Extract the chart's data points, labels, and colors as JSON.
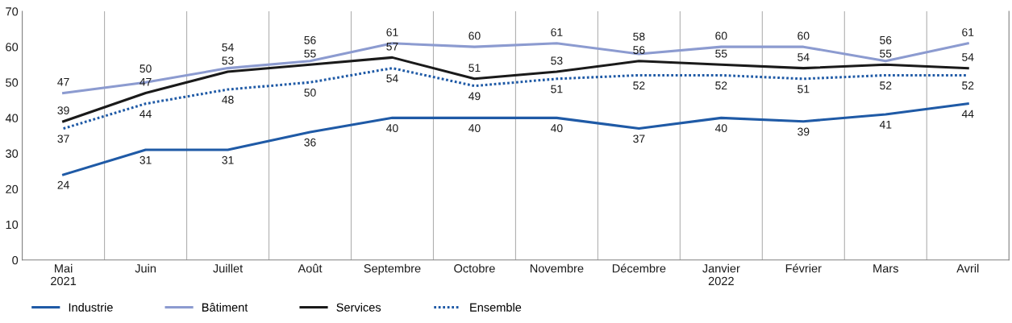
{
  "chart_data": {
    "type": "line",
    "categories": [
      "Mai\n2021",
      "Juin",
      "Juillet",
      "Août",
      "Septembre",
      "Octobre",
      "Novembre",
      "Décembre",
      "Janvier\n2022",
      "Février",
      "Mars",
      "Avril"
    ],
    "series": [
      {
        "name": "Industrie",
        "color": "#1f5aa6",
        "line_style": "solid",
        "values": [
          24,
          31,
          31,
          36,
          40,
          40,
          40,
          37,
          40,
          39,
          41,
          44
        ]
      },
      {
        "name": "Bâtiment",
        "color": "#8c9bd0",
        "line_style": "solid",
        "values": [
          47,
          50,
          54,
          56,
          61,
          60,
          61,
          58,
          60,
          60,
          56,
          61
        ]
      },
      {
        "name": "Services",
        "color": "#1a1a1a",
        "line_style": "solid",
        "values": [
          39,
          47,
          53,
          55,
          57,
          51,
          53,
          56,
          55,
          54,
          55,
          54
        ]
      },
      {
        "name": "Ensemble",
        "color": "#1f5aa6",
        "line_style": "dotted",
        "values": [
          37,
          44,
          48,
          50,
          54,
          49,
          51,
          52,
          52,
          51,
          52,
          52
        ]
      }
    ],
    "ylim": [
      0,
      70
    ],
    "yticks": [
      0,
      10,
      20,
      30,
      40,
      50,
      60,
      70
    ],
    "grid": "x",
    "legend": "bottom left",
    "data_labels": true,
    "marker": "none"
  }
}
